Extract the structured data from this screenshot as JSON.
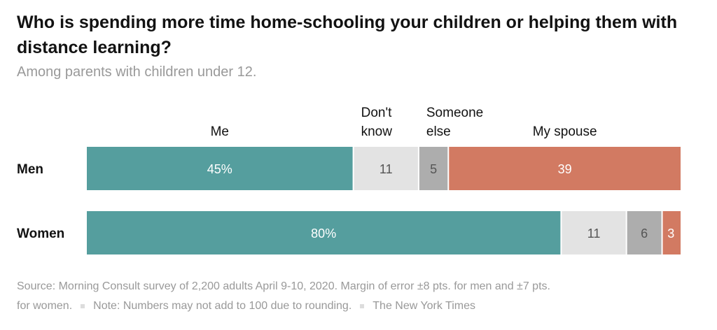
{
  "title": "Who is spending more time home-schooling your children or helping them with distance learning?",
  "subtitle": "Among parents with children under 12.",
  "chart_data": {
    "type": "bar",
    "orientation": "horizontal",
    "stacked": true,
    "categories": [
      "Men",
      "Women"
    ],
    "series": [
      {
        "name": "Me",
        "values": [
          45,
          80
        ],
        "labels": [
          "45%",
          "80%"
        ],
        "color": "#559e9e"
      },
      {
        "name": "Don't know",
        "values": [
          11,
          11
        ],
        "labels": [
          "11",
          "11"
        ],
        "color": "#e3e3e3"
      },
      {
        "name": "Someone else",
        "values": [
          5,
          6
        ],
        "labels": [
          "5",
          "6"
        ],
        "color": "#adadad"
      },
      {
        "name": "My spouse",
        "values": [
          39,
          3
        ],
        "labels": [
          "39",
          "3"
        ],
        "color": "#d27a62"
      }
    ],
    "legend_labels": [
      {
        "series": "Me",
        "lines": [
          "Me"
        ]
      },
      {
        "series": "Don't know",
        "lines": [
          "Don't",
          "know"
        ]
      },
      {
        "series": "Someone else",
        "lines": [
          "Someone",
          "else"
        ]
      },
      {
        "series": "My spouse",
        "lines": [
          "My spouse"
        ]
      }
    ],
    "legend_placement": "top, over Men bar",
    "grid": false
  },
  "source": {
    "line1": "Source: Morning Consult survey of 2,200 adults April 9-10, 2020. Margin of error ±8 pts. for men and ±7 pts.",
    "line2_a": "for women.",
    "line2_b": "Note: Numbers may not add to 100 due to rounding.",
    "line2_c": "The New York Times"
  }
}
